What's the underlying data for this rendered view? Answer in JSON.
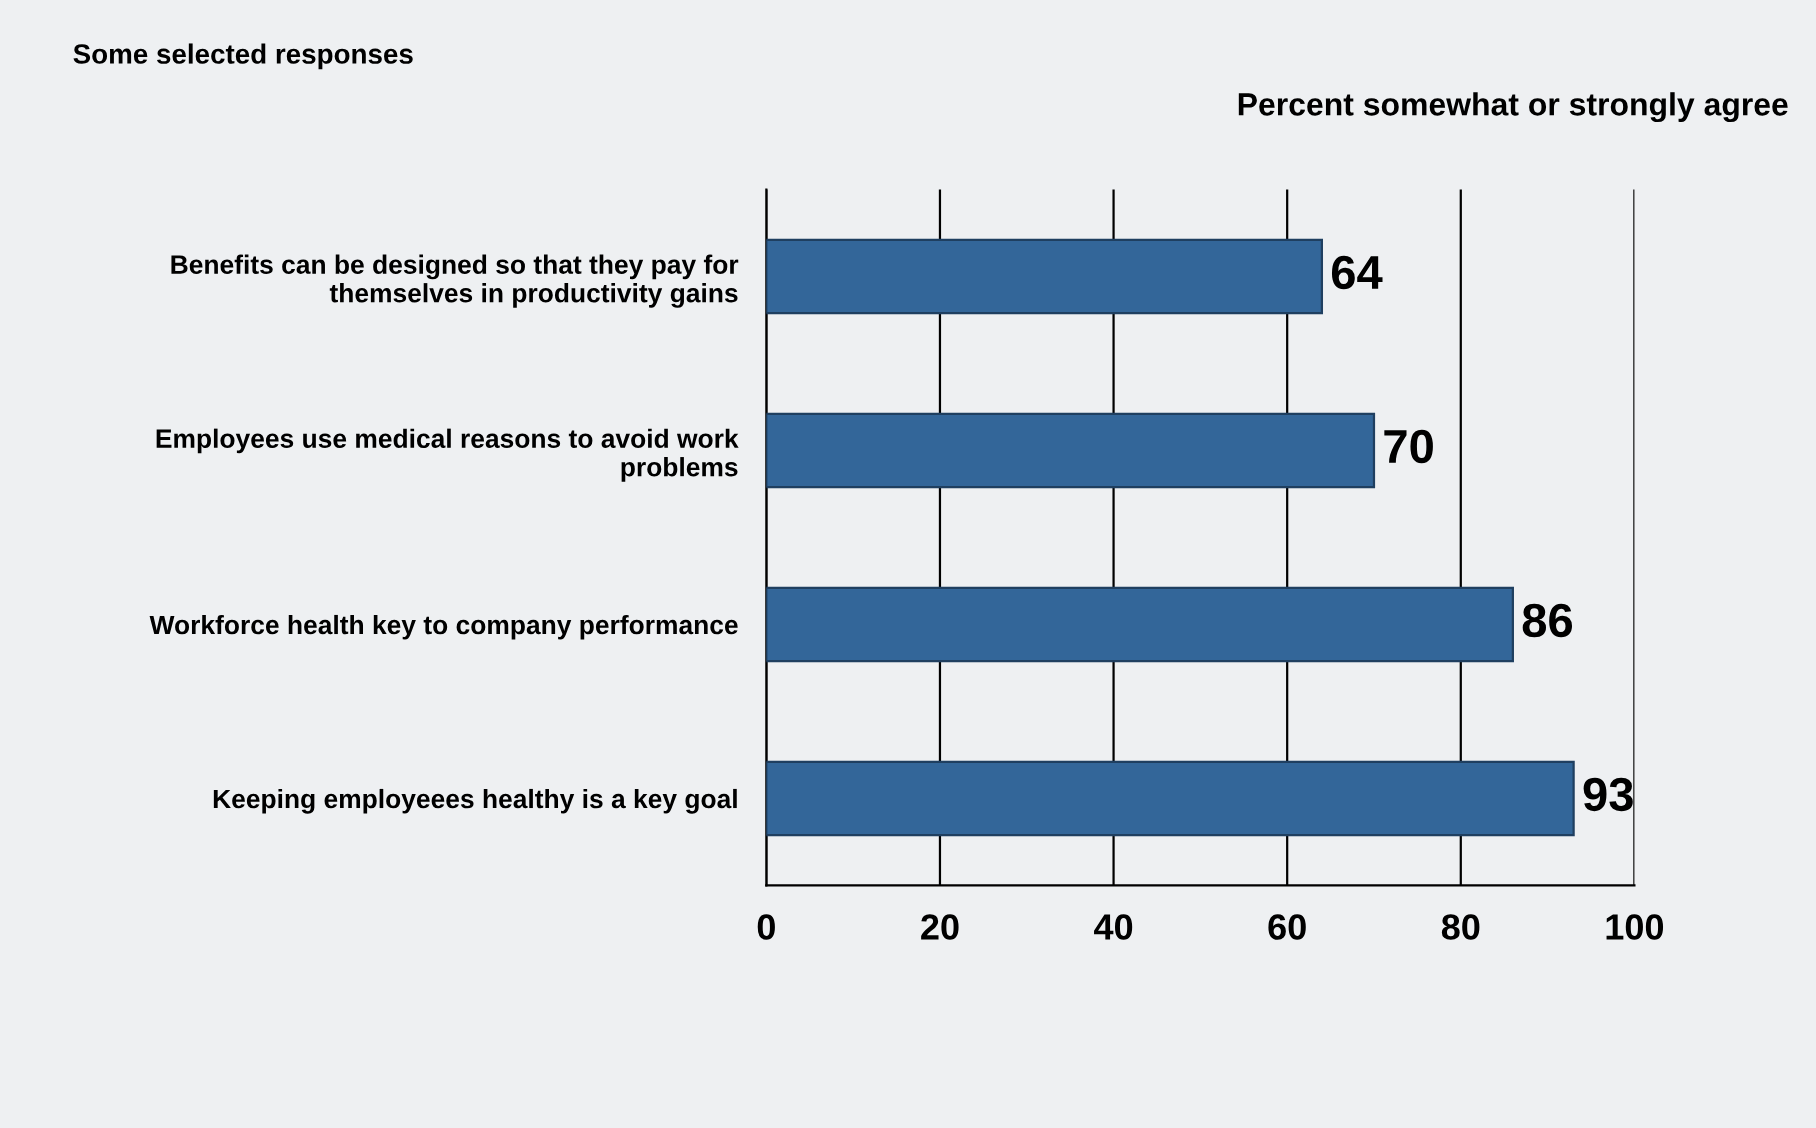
{
  "chart_data": {
    "type": "bar",
    "orientation": "horizontal",
    "title": "Some selected responses",
    "subtitle": "Percent somewhat or strongly agree",
    "categories": [
      "Benefits can be designed so that they pay for\nthemselves in productivity gains",
      "Employees use medical reasons to avoid work\nproblems",
      "Workforce health key to company performance",
      "Keeping employeees healthy is a key goal"
    ],
    "values": [
      64,
      70,
      86,
      93
    ],
    "color": "#336699",
    "xlim": [
      0,
      100
    ],
    "xticks": [
      0,
      20,
      40,
      60,
      80,
      100
    ],
    "grid": "x",
    "data_labels": true
  }
}
